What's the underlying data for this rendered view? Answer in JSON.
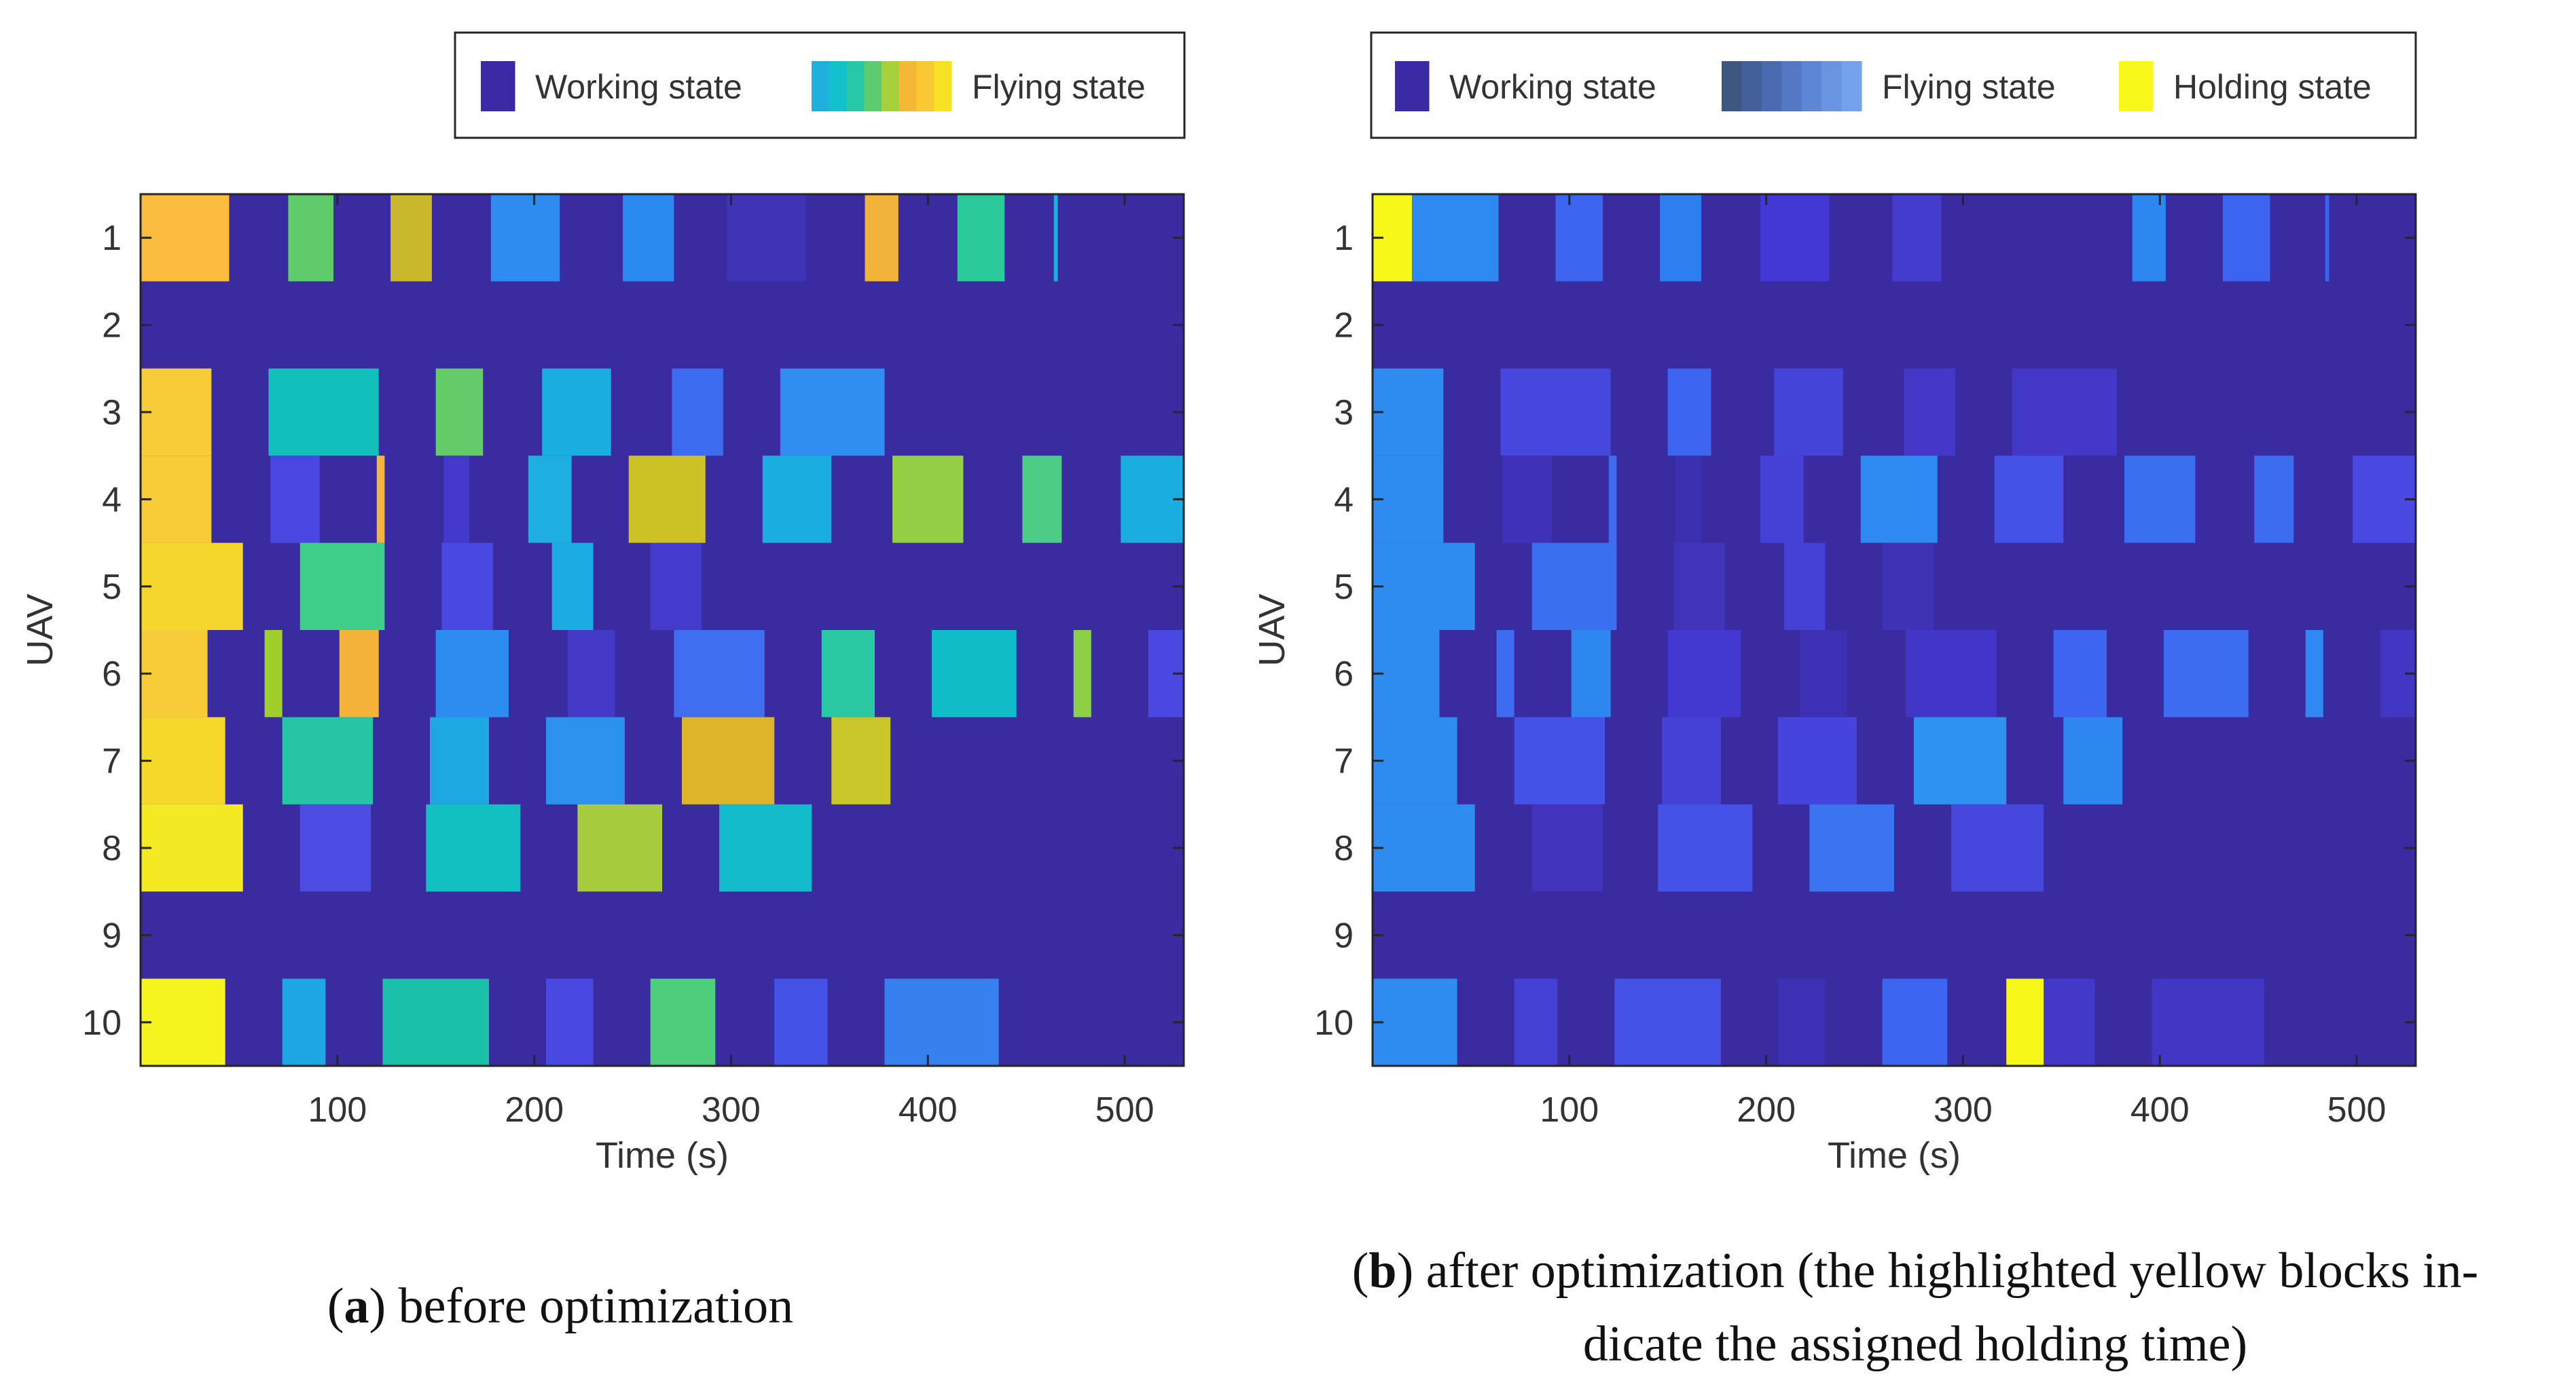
{
  "chart_data": [
    {
      "type": "heatmap",
      "panel": "a",
      "xlabel": "Time (s)",
      "ylabel": "UAV",
      "xlim": [
        0,
        530
      ],
      "xticks": [
        100,
        200,
        300,
        400,
        500
      ],
      "yticks": [
        1,
        2,
        3,
        4,
        5,
        6,
        7,
        8,
        9,
        10
      ],
      "background_state": "Working state",
      "background_color": "#3a2ba0",
      "legend": [
        {
          "label": "Working state",
          "colors": [
            "#3a2aa3"
          ]
        },
        {
          "label": "Flying state",
          "colors": [
            "#1fb0dd",
            "#12c1cc",
            "#26c8a8",
            "#5dcc70",
            "#a6d13d",
            "#f2b836",
            "#fac735",
            "#f6e125"
          ]
        }
      ],
      "blocks": [
        {
          "uav": 1,
          "start": 0,
          "end": 45,
          "color": "#fbbc3f"
        },
        {
          "uav": 1,
          "start": 75,
          "end": 98,
          "color": "#5fcb6a"
        },
        {
          "uav": 1,
          "start": 127,
          "end": 148,
          "color": "#cbb92d"
        },
        {
          "uav": 1,
          "start": 178,
          "end": 213,
          "color": "#2e8cf0"
        },
        {
          "uav": 1,
          "start": 245,
          "end": 271,
          "color": "#2a8af0"
        },
        {
          "uav": 1,
          "start": 298,
          "end": 338,
          "color": "#3f33b6"
        },
        {
          "uav": 1,
          "start": 368,
          "end": 385,
          "color": "#f2b33a"
        },
        {
          "uav": 1,
          "start": 415,
          "end": 439,
          "color": "#2cc99a"
        },
        {
          "uav": 1,
          "start": 464,
          "end": 466,
          "color": "#1ab0d8"
        },
        {
          "uav": 3,
          "start": 0,
          "end": 36,
          "color": "#f7cc38"
        },
        {
          "uav": 3,
          "start": 65,
          "end": 121,
          "color": "#12c0bb"
        },
        {
          "uav": 3,
          "start": 150,
          "end": 174,
          "color": "#64cb68"
        },
        {
          "uav": 3,
          "start": 204,
          "end": 239,
          "color": "#1aaee0"
        },
        {
          "uav": 3,
          "start": 270,
          "end": 296,
          "color": "#3c6cf0"
        },
        {
          "uav": 3,
          "start": 325,
          "end": 378,
          "color": "#2f8ef0"
        },
        {
          "uav": 4,
          "start": 0,
          "end": 36,
          "color": "#f7cc38"
        },
        {
          "uav": 4,
          "start": 66,
          "end": 91,
          "color": "#4a46e0"
        },
        {
          "uav": 4,
          "start": 120,
          "end": 124,
          "color": "#f5b53a"
        },
        {
          "uav": 4,
          "start": 154,
          "end": 167,
          "color": "#4539cc"
        },
        {
          "uav": 4,
          "start": 197,
          "end": 219,
          "color": "#1faee0"
        },
        {
          "uav": 4,
          "start": 248,
          "end": 287,
          "color": "#ccc225"
        },
        {
          "uav": 4,
          "start": 316,
          "end": 351,
          "color": "#1aaee0"
        },
        {
          "uav": 4,
          "start": 382,
          "end": 418,
          "color": "#95cf45"
        },
        {
          "uav": 4,
          "start": 448,
          "end": 468,
          "color": "#4ccd85"
        },
        {
          "uav": 4,
          "start": 498,
          "end": 533,
          "color": "#1aaee0"
        },
        {
          "uav": 5,
          "start": 0,
          "end": 52,
          "color": "#f4d62c"
        },
        {
          "uav": 5,
          "start": 81,
          "end": 124,
          "color": "#3ece8a"
        },
        {
          "uav": 5,
          "start": 153,
          "end": 179,
          "color": "#4a48e2"
        },
        {
          "uav": 5,
          "start": 209,
          "end": 230,
          "color": "#1aace2"
        },
        {
          "uav": 5,
          "start": 259,
          "end": 285,
          "color": "#443acc"
        },
        {
          "uav": 6,
          "start": 0,
          "end": 34,
          "color": "#f7cc38"
        },
        {
          "uav": 6,
          "start": 63,
          "end": 72,
          "color": "#a2ce2c"
        },
        {
          "uav": 6,
          "start": 101,
          "end": 121,
          "color": "#f5b33a"
        },
        {
          "uav": 6,
          "start": 150,
          "end": 187,
          "color": "#2e8cf0"
        },
        {
          "uav": 6,
          "start": 217,
          "end": 241,
          "color": "#4539c8"
        },
        {
          "uav": 6,
          "start": 271,
          "end": 317,
          "color": "#3f6ef0"
        },
        {
          "uav": 6,
          "start": 346,
          "end": 373,
          "color": "#28c8a2"
        },
        {
          "uav": 6,
          "start": 402,
          "end": 445,
          "color": "#0fbcc8"
        },
        {
          "uav": 6,
          "start": 474,
          "end": 483,
          "color": "#8cd048"
        },
        {
          "uav": 6,
          "start": 512,
          "end": 530,
          "color": "#4a48e0"
        },
        {
          "uav": 7,
          "start": 0,
          "end": 43,
          "color": "#f6d82a"
        },
        {
          "uav": 7,
          "start": 72,
          "end": 118,
          "color": "#26c5a6"
        },
        {
          "uav": 7,
          "start": 147,
          "end": 177,
          "color": "#1da8e2"
        },
        {
          "uav": 7,
          "start": 206,
          "end": 246,
          "color": "#2d92ee"
        },
        {
          "uav": 7,
          "start": 275,
          "end": 322,
          "color": "#ddb52a"
        },
        {
          "uav": 7,
          "start": 351,
          "end": 381,
          "color": "#c8c628"
        },
        {
          "uav": 8,
          "start": 0,
          "end": 52,
          "color": "#f4ea24"
        },
        {
          "uav": 8,
          "start": 81,
          "end": 117,
          "color": "#4a4ce2"
        },
        {
          "uav": 8,
          "start": 145,
          "end": 193,
          "color": "#12c0c2"
        },
        {
          "uav": 8,
          "start": 222,
          "end": 265,
          "color": "#a6cc3e"
        },
        {
          "uav": 8,
          "start": 294,
          "end": 341,
          "color": "#13bcca"
        },
        {
          "uav": 10,
          "start": 0,
          "end": 43,
          "color": "#f6f41e"
        },
        {
          "uav": 10,
          "start": 72,
          "end": 94,
          "color": "#1ea6e4"
        },
        {
          "uav": 10,
          "start": 123,
          "end": 177,
          "color": "#1bc0a8"
        },
        {
          "uav": 10,
          "start": 206,
          "end": 230,
          "color": "#4a48e2"
        },
        {
          "uav": 10,
          "start": 259,
          "end": 292,
          "color": "#4ecd7c"
        },
        {
          "uav": 10,
          "start": 322,
          "end": 349,
          "color": "#4452e8"
        },
        {
          "uav": 10,
          "start": 378,
          "end": 436,
          "color": "#3680f0"
        }
      ],
      "caption_label": "a",
      "caption_text": ") before optimization"
    },
    {
      "type": "heatmap",
      "panel": "b",
      "xlabel": "Time (s)",
      "ylabel": "UAV",
      "xlim": [
        0,
        530
      ],
      "xticks": [
        100,
        200,
        300,
        400,
        500
      ],
      "yticks": [
        1,
        2,
        3,
        4,
        5,
        6,
        7,
        8,
        9,
        10
      ],
      "background_state": "Working state",
      "background_color": "#3a2ba0",
      "legend": [
        {
          "label": "Working state",
          "colors": [
            "#3a2aa3"
          ]
        },
        {
          "label": "Flying state",
          "colors": [
            "#3d5880",
            "#44609a",
            "#4b6bb0",
            "#5478c4",
            "#5e86d6",
            "#6894e2",
            "#74a2ee"
          ]
        },
        {
          "label": "Holding state",
          "colors": [
            "#f8f81a"
          ]
        }
      ],
      "blocks": [
        {
          "uav": 1,
          "start": 0,
          "end": 20,
          "color": "#f6f818"
        },
        {
          "uav": 1,
          "start": 20,
          "end": 64,
          "color": "#2e8af0"
        },
        {
          "uav": 1,
          "start": 93,
          "end": 117,
          "color": "#3c66f0"
        },
        {
          "uav": 1,
          "start": 146,
          "end": 167,
          "color": "#2e7ef0"
        },
        {
          "uav": 1,
          "start": 197,
          "end": 232,
          "color": "#4338d4"
        },
        {
          "uav": 1,
          "start": 264,
          "end": 289,
          "color": "#443ccc"
        },
        {
          "uav": 1,
          "start": 386,
          "end": 403,
          "color": "#2e86f0"
        },
        {
          "uav": 1,
          "start": 432,
          "end": 456,
          "color": "#3c64f0"
        },
        {
          "uav": 1,
          "start": 484,
          "end": 486,
          "color": "#3c64f0"
        },
        {
          "uav": 3,
          "start": 0,
          "end": 36,
          "color": "#2e8cf0"
        },
        {
          "uav": 3,
          "start": 65,
          "end": 121,
          "color": "#4448dc"
        },
        {
          "uav": 3,
          "start": 150,
          "end": 172,
          "color": "#3c66f0"
        },
        {
          "uav": 3,
          "start": 204,
          "end": 239,
          "color": "#4544d8"
        },
        {
          "uav": 3,
          "start": 270,
          "end": 296,
          "color": "#4338c8"
        },
        {
          "uav": 3,
          "start": 325,
          "end": 378,
          "color": "#4438c8"
        },
        {
          "uav": 4,
          "start": 0,
          "end": 36,
          "color": "#2e8cf0"
        },
        {
          "uav": 4,
          "start": 66,
          "end": 91,
          "color": "#4032b8"
        },
        {
          "uav": 4,
          "start": 120,
          "end": 124,
          "color": "#3c6cf0"
        },
        {
          "uav": 4,
          "start": 154,
          "end": 167,
          "color": "#3d30b0"
        },
        {
          "uav": 4,
          "start": 197,
          "end": 219,
          "color": "#4540d6"
        },
        {
          "uav": 4,
          "start": 248,
          "end": 287,
          "color": "#2e8af0"
        },
        {
          "uav": 4,
          "start": 316,
          "end": 351,
          "color": "#4452e8"
        },
        {
          "uav": 4,
          "start": 382,
          "end": 418,
          "color": "#3a70f0"
        },
        {
          "uav": 4,
          "start": 448,
          "end": 468,
          "color": "#3c6cf0"
        },
        {
          "uav": 4,
          "start": 498,
          "end": 533,
          "color": "#4a48e2"
        },
        {
          "uav": 5,
          "start": 0,
          "end": 52,
          "color": "#2e8cf0"
        },
        {
          "uav": 5,
          "start": 81,
          "end": 124,
          "color": "#3a70f0"
        },
        {
          "uav": 5,
          "start": 153,
          "end": 179,
          "color": "#4034b8"
        },
        {
          "uav": 5,
          "start": 209,
          "end": 230,
          "color": "#4540d6"
        },
        {
          "uav": 5,
          "start": 259,
          "end": 285,
          "color": "#3f32b4"
        },
        {
          "uav": 6,
          "start": 0,
          "end": 34,
          "color": "#2e8cf0"
        },
        {
          "uav": 6,
          "start": 63,
          "end": 72,
          "color": "#3c6cf0"
        },
        {
          "uav": 6,
          "start": 101,
          "end": 121,
          "color": "#2e86f0"
        },
        {
          "uav": 6,
          "start": 150,
          "end": 187,
          "color": "#4338d0"
        },
        {
          "uav": 6,
          "start": 217,
          "end": 241,
          "color": "#3e30b4"
        },
        {
          "uav": 6,
          "start": 271,
          "end": 317,
          "color": "#4236c8"
        },
        {
          "uav": 6,
          "start": 346,
          "end": 373,
          "color": "#3c66f0"
        },
        {
          "uav": 6,
          "start": 402,
          "end": 445,
          "color": "#3c6cf0"
        },
        {
          "uav": 6,
          "start": 474,
          "end": 483,
          "color": "#2e8af0"
        },
        {
          "uav": 6,
          "start": 512,
          "end": 530,
          "color": "#4236c4"
        },
        {
          "uav": 7,
          "start": 0,
          "end": 43,
          "color": "#2e8cf0"
        },
        {
          "uav": 7,
          "start": 72,
          "end": 118,
          "color": "#4452e8"
        },
        {
          "uav": 7,
          "start": 147,
          "end": 177,
          "color": "#4540d6"
        },
        {
          "uav": 7,
          "start": 206,
          "end": 246,
          "color": "#4544dc"
        },
        {
          "uav": 7,
          "start": 275,
          "end": 322,
          "color": "#2e92f0"
        },
        {
          "uav": 7,
          "start": 351,
          "end": 381,
          "color": "#2e86f0"
        },
        {
          "uav": 8,
          "start": 0,
          "end": 52,
          "color": "#2e8cf0"
        },
        {
          "uav": 8,
          "start": 81,
          "end": 117,
          "color": "#4034bc"
        },
        {
          "uav": 8,
          "start": 145,
          "end": 193,
          "color": "#4452e8"
        },
        {
          "uav": 8,
          "start": 222,
          "end": 265,
          "color": "#3a74f0"
        },
        {
          "uav": 8,
          "start": 294,
          "end": 341,
          "color": "#4548dc"
        },
        {
          "uav": 10,
          "start": 0,
          "end": 43,
          "color": "#2e8cf0"
        },
        {
          "uav": 10,
          "start": 72,
          "end": 94,
          "color": "#4540d4"
        },
        {
          "uav": 10,
          "start": 123,
          "end": 177,
          "color": "#4452e8"
        },
        {
          "uav": 10,
          "start": 206,
          "end": 230,
          "color": "#3e30b4"
        },
        {
          "uav": 10,
          "start": 259,
          "end": 292,
          "color": "#3c66f0"
        },
        {
          "uav": 10,
          "start": 322,
          "end": 341,
          "color": "#f6f618"
        },
        {
          "uav": 10,
          "start": 341,
          "end": 367,
          "color": "#4338c8"
        },
        {
          "uav": 10,
          "start": 396,
          "end": 453,
          "color": "#4236c4"
        }
      ],
      "caption_label": "b",
      "caption_text_line1": ") after optimization (the highlighted yellow blocks in-",
      "caption_text_line2": "dicate the assigned holding time)"
    }
  ]
}
